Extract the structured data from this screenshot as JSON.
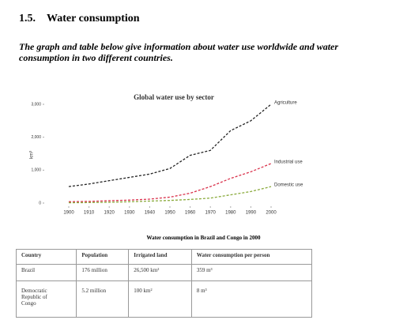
{
  "header": {
    "number": "1.5.",
    "title": "Water consumption",
    "intro": "The graph and table below give information about water use worldwide and water consumption in two different countries."
  },
  "chart_data": {
    "type": "line",
    "title": "Global water use by sector",
    "ylabel": "km³",
    "x": [
      1900,
      1910,
      1920,
      1930,
      1940,
      1950,
      1960,
      1970,
      1980,
      1990,
      2000
    ],
    "xlim": [
      1900,
      2000
    ],
    "xticks": [
      1900,
      1910,
      1920,
      1930,
      1940,
      1950,
      1960,
      1970,
      1980,
      1990,
      2000
    ],
    "ylim": [
      0,
      3000
    ],
    "yticks": [
      0,
      {
        "value": 1000,
        "label": "1,000"
      },
      {
        "value": 2000,
        "label": "2,000"
      },
      {
        "value": 3000,
        "label": "3,000"
      }
    ],
    "series": [
      {
        "name": "Agriculture",
        "color": "#222222",
        "values": [
          500,
          580,
          680,
          780,
          880,
          1050,
          1450,
          1600,
          2200,
          2500,
          3000
        ]
      },
      {
        "name": "Industrial use",
        "color": "#d9304a",
        "values": [
          40,
          50,
          70,
          90,
          120,
          180,
          300,
          500,
          750,
          950,
          1200
        ]
      },
      {
        "name": "Domestic use",
        "color": "#8aaa3c",
        "values": [
          10,
          15,
          25,
          40,
          60,
          80,
          110,
          150,
          250,
          350,
          500
        ]
      }
    ]
  },
  "table": {
    "title": "Water consumption in Brazil and Congo in 2000",
    "header": [
      "Country",
      "Population",
      "Irrigated land",
      "Water consumption per person"
    ],
    "rows": [
      [
        "Brazil",
        "176 million",
        "26,500 km²",
        "359 m³"
      ],
      [
        "Democratic Republic of Congo",
        "5.2 million",
        "100 km²",
        "8 m³"
      ]
    ]
  }
}
